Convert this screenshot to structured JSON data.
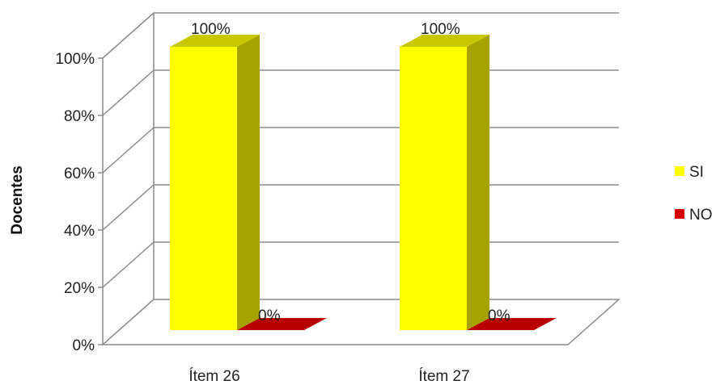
{
  "chart_data": {
    "type": "bar",
    "three_d": true,
    "title": "",
    "xlabel": "",
    "ylabel": "Docentes",
    "categories": [
      "Ítem 26",
      "Ítem 27"
    ],
    "series": [
      {
        "name": "SI",
        "values": [
          100,
          100
        ],
        "data_labels": [
          "100%",
          "100%"
        ],
        "color": "#ffff00"
      },
      {
        "name": "NO",
        "values": [
          0,
          0
        ],
        "data_labels": [
          "0%",
          "0%"
        ],
        "color": "#d40000"
      }
    ],
    "ylim": [
      0,
      100
    ],
    "yticks": [
      0,
      20,
      40,
      60,
      80,
      100
    ],
    "ytick_labels": [
      "0%",
      "20%",
      "40%",
      "60%",
      "80%",
      "100%"
    ],
    "grid": true,
    "legend": {
      "position": "right",
      "entries": [
        "SI",
        "NO"
      ]
    }
  }
}
